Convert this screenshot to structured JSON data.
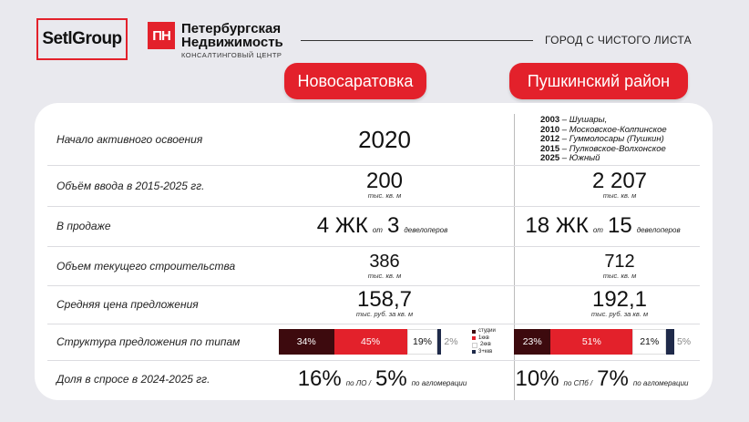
{
  "header": {
    "logo_setl": "SetlGroup",
    "logo_pn_mark": "ПН",
    "logo_pn_line1": "Петербургская",
    "logo_pn_line2": "Недвижимость",
    "logo_pn_sub": "КОНСАЛТИНГОВЫЙ ЦЕНТР",
    "tagline": "ГОРОД С ЧИСТОГО ЛИСТА"
  },
  "columns": {
    "a": "Новосаратовка",
    "b": "Пушкинский район"
  },
  "colors": {
    "accent": "#e3212b",
    "studio": "#3d0a0e",
    "room1": "#e3212b",
    "room2": "#ffffff",
    "room3": "#1f2a4a"
  },
  "rows": {
    "start": {
      "label": "Начало активного освоения",
      "a": "2020",
      "b_history": [
        {
          "year": "2003",
          "text": " – Шушары,"
        },
        {
          "year": "2010",
          "text": " – Московское-Колпинское"
        },
        {
          "year": "2012",
          "text": " – Гуммолосары (Пушкин)"
        },
        {
          "year": "2015",
          "text": " – Пулковское-Волхонское"
        },
        {
          "year": "2025",
          "text": " – Южный"
        }
      ]
    },
    "volume": {
      "label": "Объём ввода в 2015-2025 гг.",
      "a": "200",
      "a_unit": "тыс. кв. м",
      "b": "2 207",
      "b_unit": "тыс. кв. м"
    },
    "on_sale": {
      "label": "В продаже",
      "a_count": "4 ЖК",
      "a_from": "от",
      "a_dev": "3",
      "a_dev_unit": "девелоперов",
      "b_count": "18 ЖК",
      "b_from": "от",
      "b_dev": "15",
      "b_dev_unit": "девелоперов"
    },
    "construction": {
      "label": "Объем текущего строительства",
      "a": "386",
      "a_unit": "тыс. кв. м",
      "b": "712",
      "b_unit": "тыс. кв. м"
    },
    "price": {
      "label": "Средняя цена предложения",
      "a": "158,7",
      "a_unit": "тыс. руб. за кв. м",
      "b": "192,1",
      "b_unit": "тыс. руб. за кв. м"
    },
    "structure": {
      "label": "Структура предложения по типам",
      "legend": [
        "студии",
        "1ккв",
        "2ккв",
        "3+ккв"
      ],
      "a": [
        {
          "label": "34%",
          "value": 34
        },
        {
          "label": "45%",
          "value": 45
        },
        {
          "label": "19%",
          "value": 19
        },
        {
          "label": "2%",
          "value": 2
        }
      ],
      "b": [
        {
          "label": "23%",
          "value": 23
        },
        {
          "label": "51%",
          "value": 51
        },
        {
          "label": "21%",
          "value": 21
        },
        {
          "label": "5%",
          "value": 5
        }
      ]
    },
    "demand": {
      "label": "Доля в спросе в 2024-2025 гг.",
      "a1": "16%",
      "a1_unit": "по ЛО /",
      "a2": "5%",
      "a2_unit": "по агломерации",
      "b1": "10%",
      "b1_unit": "по СПб /",
      "b2": "7%",
      "b2_unit": "по агломерации"
    }
  }
}
